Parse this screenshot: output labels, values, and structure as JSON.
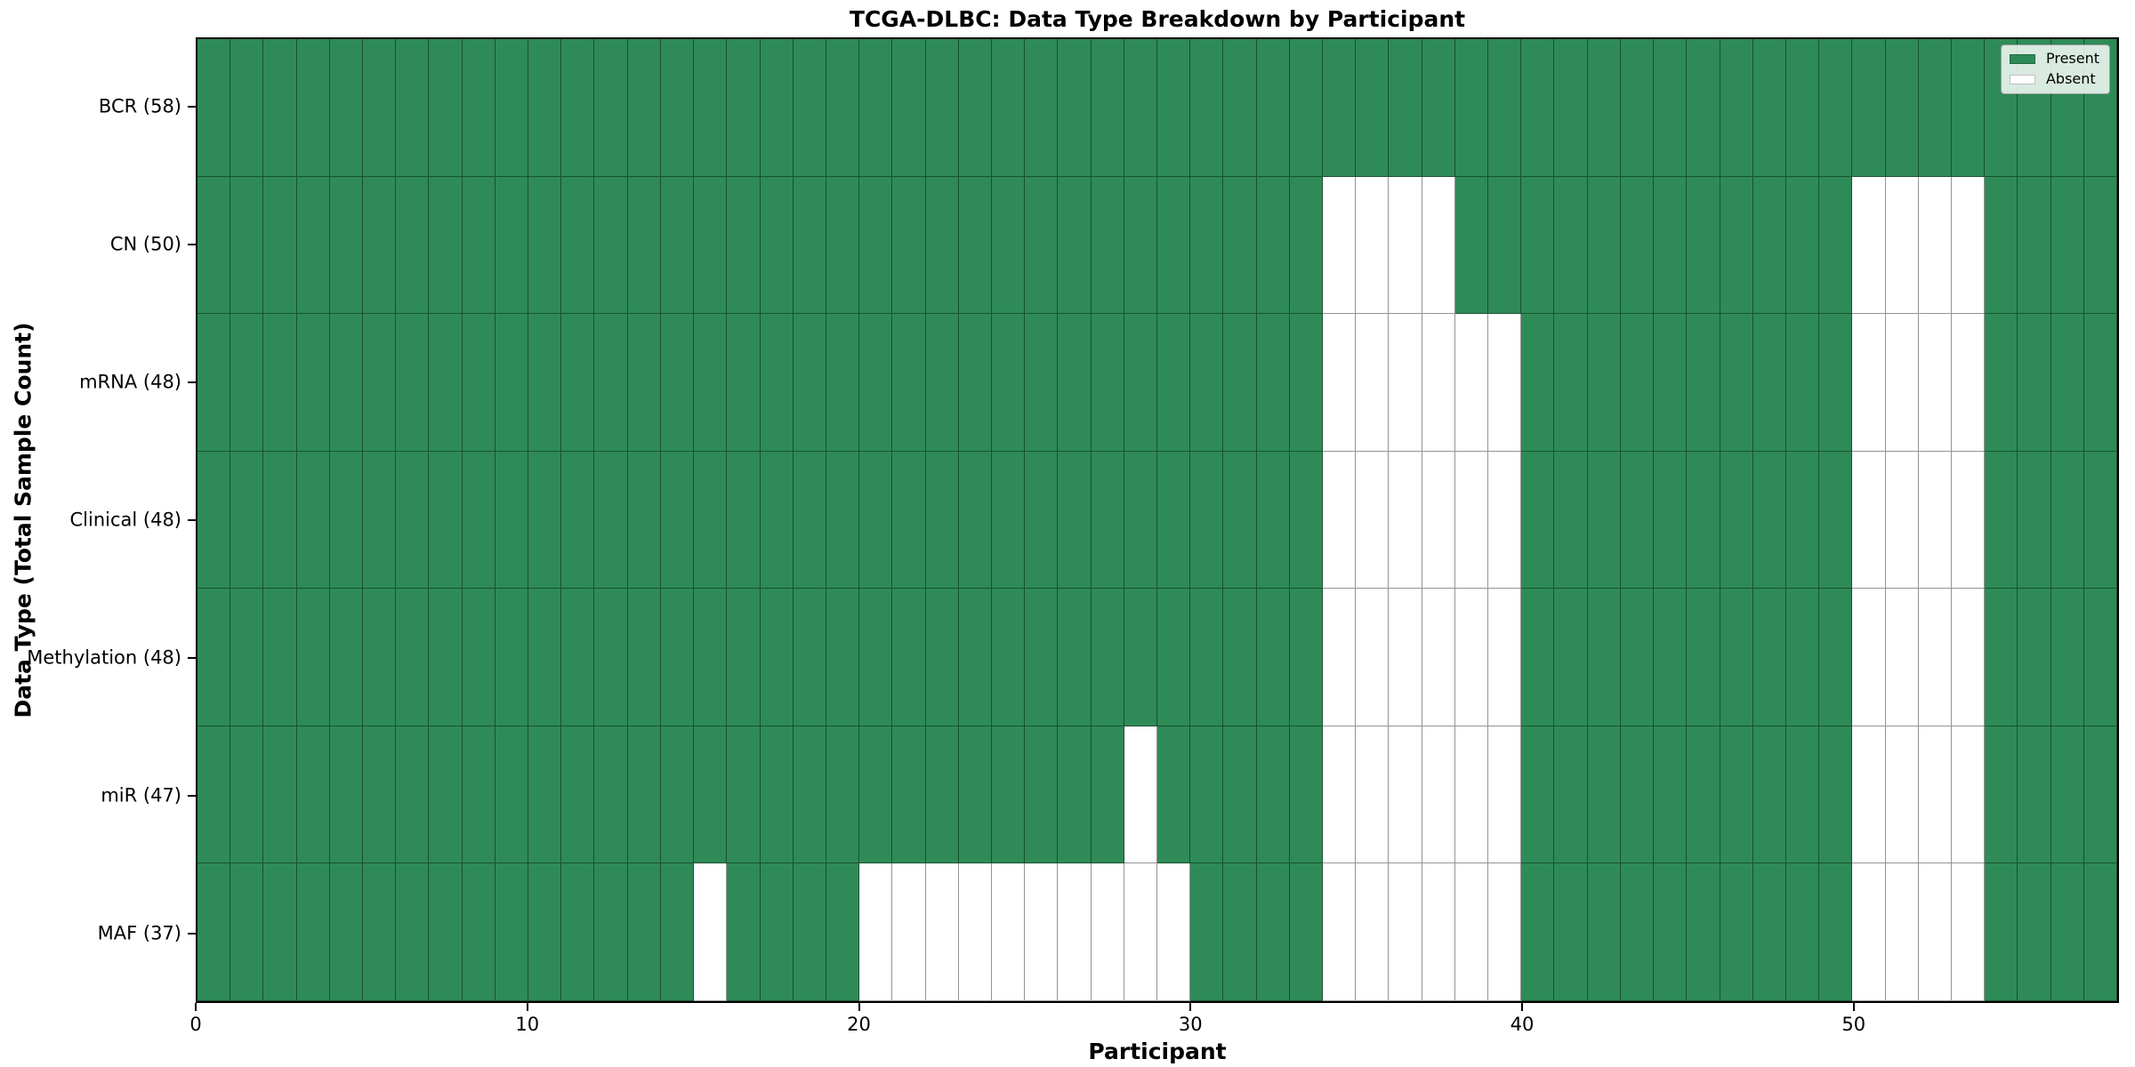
{
  "chart_data": {
    "type": "heatmap",
    "title": "TCGA-DLBC: Data Type Breakdown by Participant",
    "xlabel": "Participant",
    "ylabel": "Data Type (Total Sample Count)",
    "n_participants": 58,
    "x_axis_range": [
      0,
      58
    ],
    "x_ticks": [
      0,
      10,
      20,
      30,
      40,
      50
    ],
    "x_tick_labels": [
      "0",
      "10",
      "20",
      "30",
      "40",
      "50"
    ],
    "grid": true,
    "legend_position": "upper right",
    "colors": {
      "present": "#2e8b57",
      "absent": "#ffffff"
    },
    "legend": [
      {
        "label": "Present",
        "color": "#2e8b57"
      },
      {
        "label": "Absent",
        "color": "#ffffff"
      }
    ],
    "rows": [
      {
        "label": "BCR (58)",
        "total": 58,
        "absent_participants": []
      },
      {
        "label": "CN (50)",
        "total": 50,
        "absent_participants": [
          34,
          35,
          36,
          37,
          50,
          51,
          52,
          53
        ]
      },
      {
        "label": "mRNA (48)",
        "total": 48,
        "absent_participants": [
          34,
          35,
          36,
          37,
          38,
          39,
          50,
          51,
          52,
          53
        ]
      },
      {
        "label": "Clinical (48)",
        "total": 48,
        "absent_participants": [
          34,
          35,
          36,
          37,
          38,
          39,
          50,
          51,
          52,
          53
        ]
      },
      {
        "label": "Methylation (48)",
        "total": 48,
        "absent_participants": [
          34,
          35,
          36,
          37,
          38,
          39,
          50,
          51,
          52,
          53
        ]
      },
      {
        "label": "miR (47)",
        "total": 47,
        "absent_participants": [
          28,
          34,
          35,
          36,
          37,
          38,
          39,
          50,
          51,
          52,
          53
        ]
      },
      {
        "label": "MAF (37)",
        "total": 37,
        "absent_participants": [
          15,
          20,
          21,
          22,
          23,
          24,
          25,
          26,
          27,
          28,
          29,
          34,
          35,
          36,
          37,
          38,
          39,
          50,
          51,
          52,
          53
        ]
      }
    ]
  }
}
